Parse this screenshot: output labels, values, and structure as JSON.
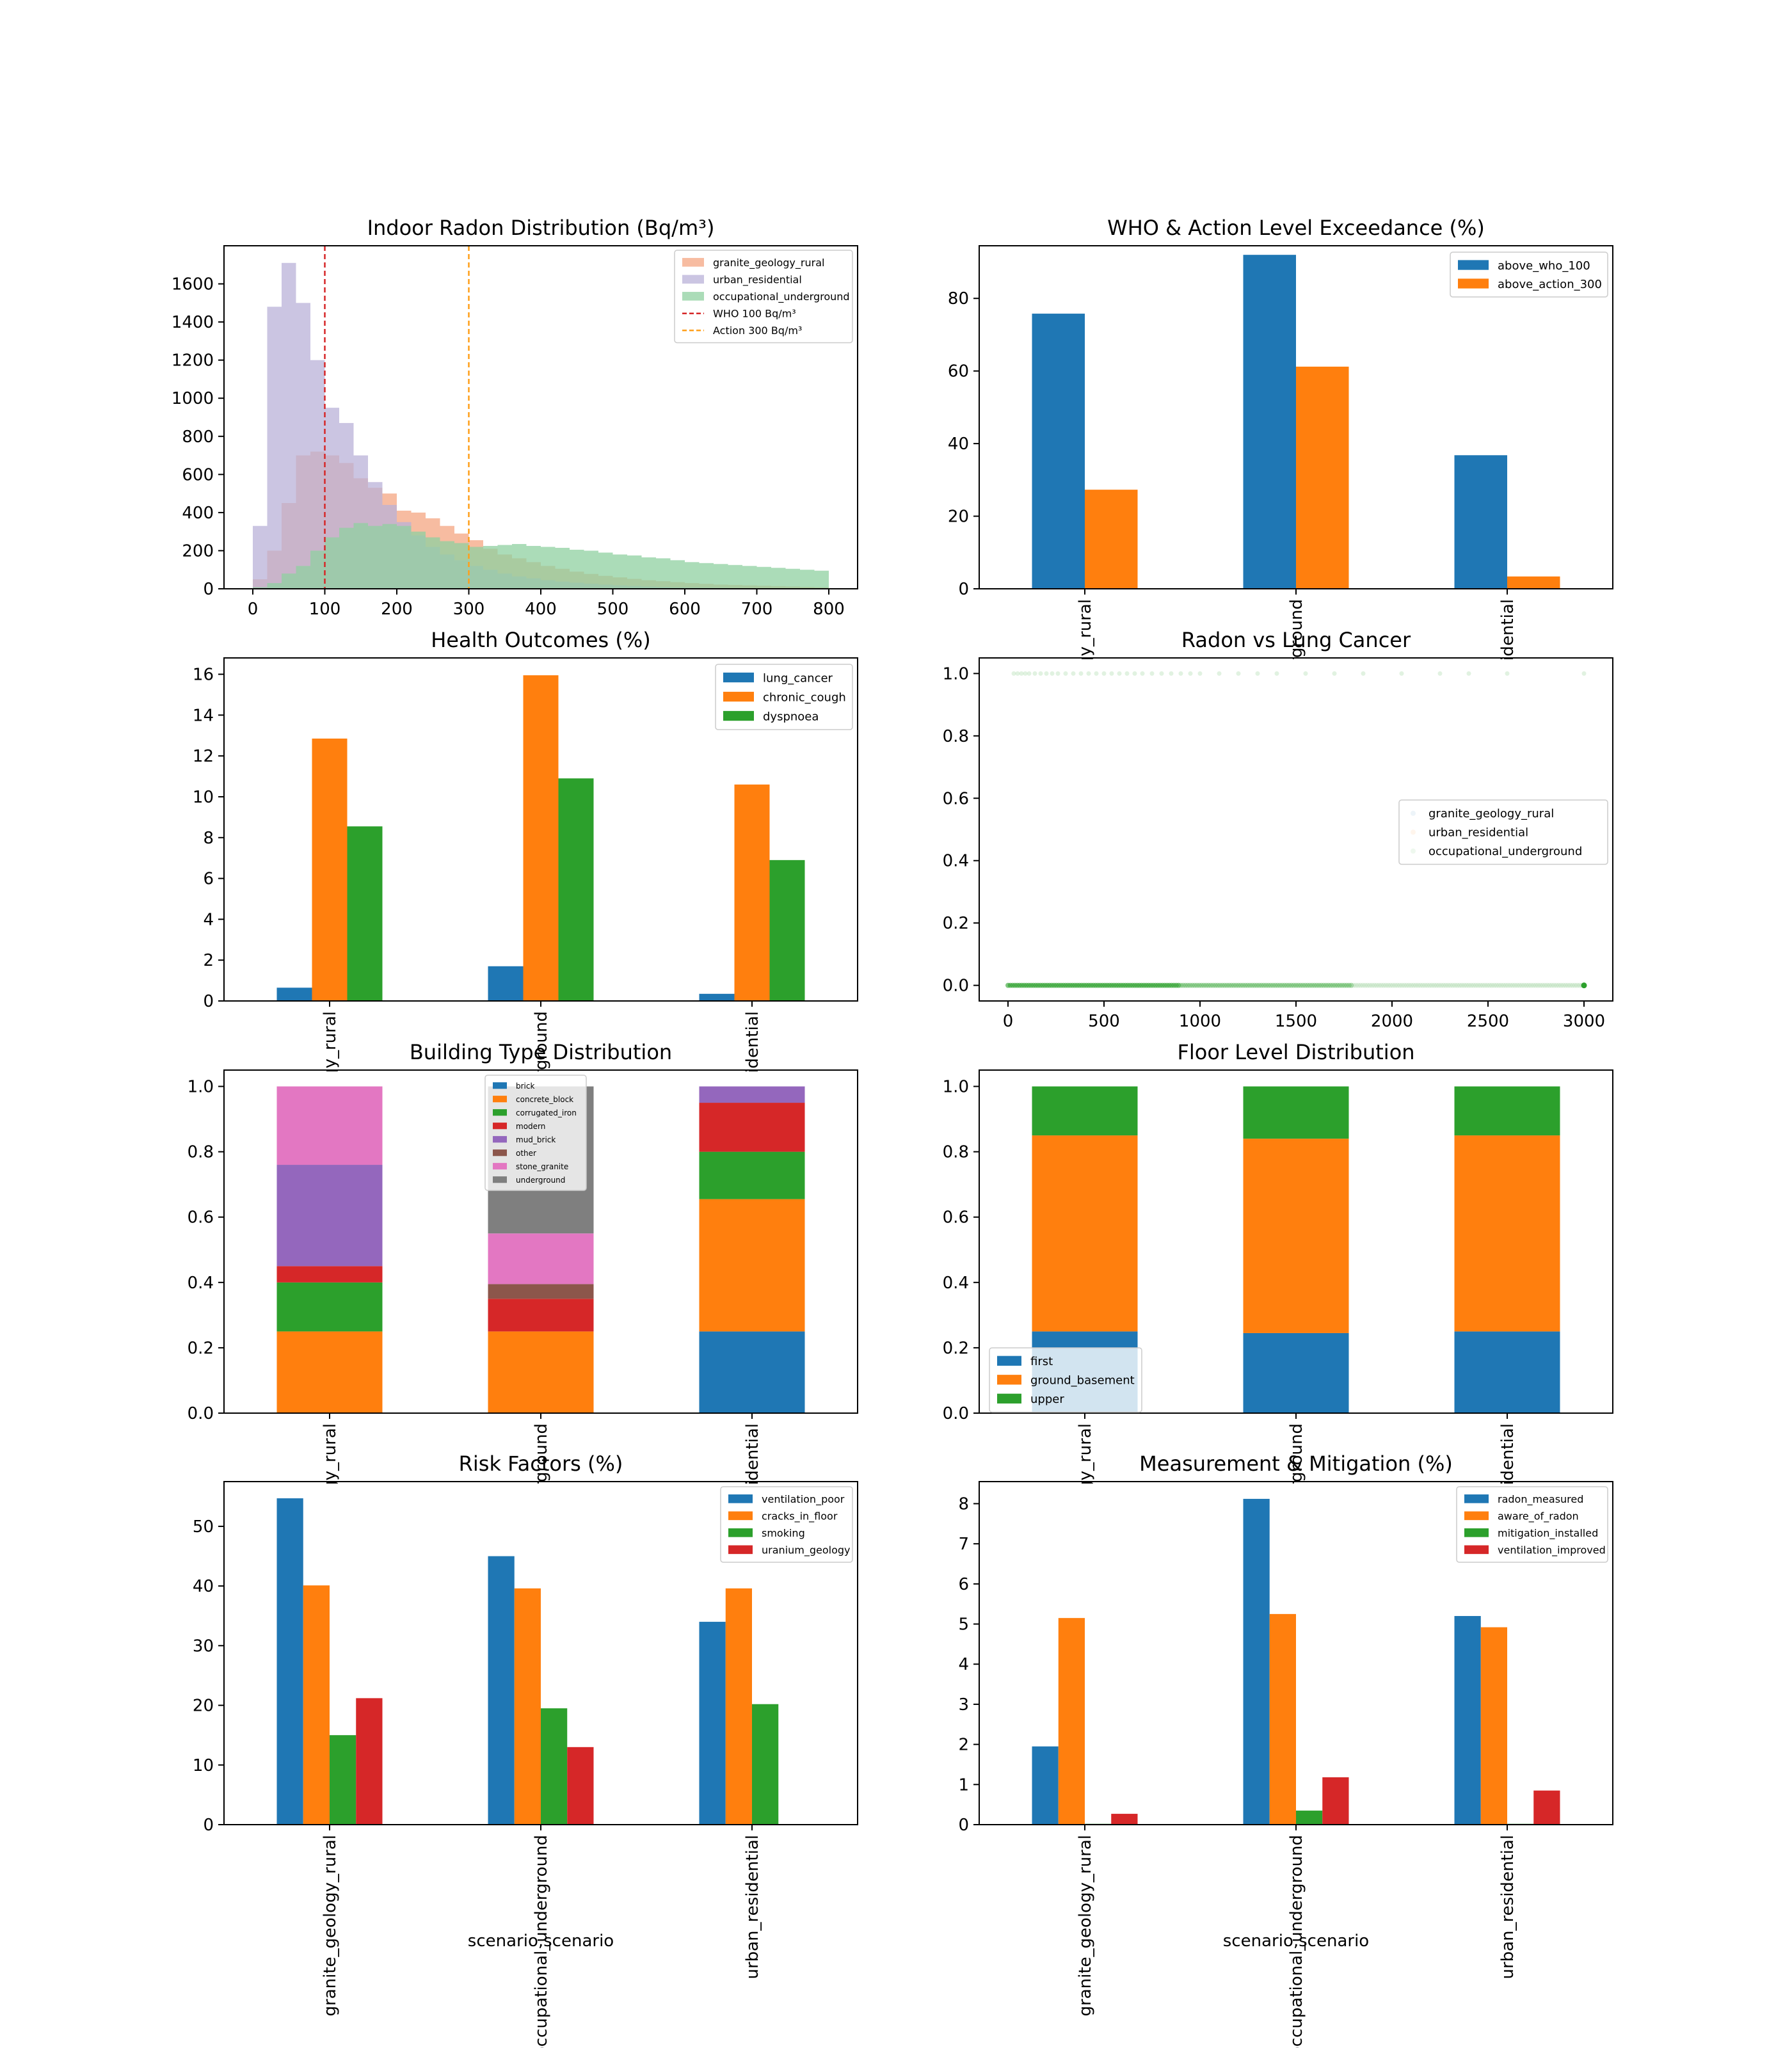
{
  "colors": {
    "blue": "#1f77b4",
    "orange": "#ff7f0e",
    "green": "#2ca02c",
    "red": "#d62728",
    "purple": "#9467bd",
    "brown": "#8c564b",
    "pink": "#e377c2",
    "gray": "#7f7f7f",
    "hist_orange": "#f4a582",
    "hist_purple": "#b9b1d8",
    "hist_green": "#8fd0a0"
  },
  "chart_data": [
    {
      "id": "hist",
      "type": "histogram",
      "title": "Indoor Radon Distribution (Bq/m³)",
      "xlim": [
        -40,
        840
      ],
      "ylim": [
        0,
        1800
      ],
      "xticks": [
        0,
        100,
        200,
        300,
        400,
        500,
        600,
        700,
        800
      ],
      "yticks": [
        0,
        200,
        400,
        600,
        800,
        1000,
        1200,
        1400,
        1600
      ],
      "bin_edges": [
        0,
        20,
        40,
        60,
        80,
        100,
        120,
        140,
        160,
        180,
        200,
        220,
        240,
        260,
        280,
        300,
        320,
        340,
        360,
        380,
        400,
        420,
        440,
        460,
        480,
        500,
        520,
        540,
        560,
        580,
        600,
        620,
        640,
        660,
        680,
        700,
        720,
        740,
        760,
        780,
        800
      ],
      "series": [
        {
          "name": "granite_geology_rural",
          "color": "#f4a582",
          "values": [
            50,
            200,
            450,
            700,
            720,
            700,
            660,
            580,
            530,
            500,
            410,
            400,
            370,
            330,
            290,
            255,
            210,
            180,
            160,
            140,
            120,
            105,
            90,
            78,
            68,
            60,
            52,
            45,
            40,
            35,
            30,
            26,
            22,
            20,
            18,
            16,
            14,
            12,
            10,
            8
          ]
        },
        {
          "name": "urban_residential",
          "color": "#b9b1d8",
          "values": [
            330,
            1480,
            1710,
            1500,
            1200,
            950,
            870,
            700,
            560,
            440,
            350,
            280,
            220,
            180,
            150,
            120,
            100,
            80,
            65,
            55,
            45,
            38,
            32,
            27,
            22,
            18,
            15,
            12,
            10,
            8,
            7,
            6,
            5,
            4,
            3,
            3,
            2,
            2,
            1,
            1
          ]
        },
        {
          "name": "occupational_underground",
          "color": "#8fd0a0",
          "values": [
            8,
            30,
            80,
            120,
            200,
            270,
            320,
            345,
            330,
            340,
            330,
            300,
            270,
            250,
            240,
            220,
            225,
            230,
            235,
            225,
            220,
            215,
            205,
            200,
            190,
            180,
            175,
            165,
            160,
            150,
            140,
            135,
            130,
            125,
            120,
            115,
            110,
            105,
            100,
            95
          ]
        }
      ],
      "vlines": [
        {
          "name": "WHO 100 Bq/m³",
          "x": 100,
          "color": "#d62728"
        },
        {
          "name": "Action 300 Bq/m³",
          "x": 300,
          "color": "#ff9f1a"
        }
      ],
      "legend": "top-right"
    },
    {
      "id": "who",
      "type": "bar",
      "title": "WHO & Action Level Exceedance (%)",
      "categories": [
        "granite_geology_rural",
        "occupational_underground",
        "urban_residential"
      ],
      "ylim": [
        0,
        94.5
      ],
      "yticks": [
        0,
        20,
        40,
        60,
        80
      ],
      "series": [
        {
          "name": "above_who_100",
          "values": [
            75.8,
            92.0,
            36.8
          ]
        },
        {
          "name": "above_action_300",
          "values": [
            27.3,
            61.2,
            3.4
          ]
        }
      ],
      "legend": "top-right"
    },
    {
      "id": "health",
      "type": "bar",
      "title": "Health Outcomes (%)",
      "categories": [
        "granite_geology_rural",
        "occupational_underground",
        "urban_residential"
      ],
      "ylim": [
        0,
        16.8
      ],
      "yticks": [
        0,
        2,
        4,
        6,
        8,
        10,
        12,
        14,
        16
      ],
      "series": [
        {
          "name": "lung_cancer",
          "values": [
            0.65,
            1.7,
            0.35
          ]
        },
        {
          "name": "chronic_cough",
          "values": [
            12.85,
            15.95,
            10.6
          ]
        },
        {
          "name": "dyspnoea",
          "values": [
            8.55,
            10.9,
            6.9
          ]
        }
      ],
      "legend": "top-right"
    },
    {
      "id": "scatter",
      "type": "scatter",
      "title": "Radon vs Lung Cancer",
      "xlim": [
        -150,
        3150
      ],
      "ylim": [
        -0.05,
        1.05
      ],
      "xticks": [
        0,
        500,
        1000,
        1500,
        2000,
        2500,
        3000
      ],
      "yticks": [
        0.0,
        0.2,
        0.4,
        0.6,
        0.8,
        1.0
      ],
      "series": [
        {
          "name": "granite_geology_rural",
          "color": "#1f77b4"
        },
        {
          "name": "urban_residential",
          "color": "#ff7f0e"
        },
        {
          "name": "occupational_underground",
          "color": "#2ca02c"
        }
      ],
      "points_y1": [
        30,
        50,
        70,
        90,
        110,
        140,
        170,
        200,
        230,
        260,
        300,
        340,
        380,
        420,
        460,
        500,
        540,
        580,
        620,
        660,
        700,
        750,
        800,
        850,
        900,
        950,
        1000,
        1100,
        1200,
        1300,
        1400,
        1550,
        1700,
        1850,
        2050,
        2250,
        2400,
        2600,
        3000
      ],
      "points_y0_range": [
        0,
        3000
      ],
      "legend": "center-right"
    },
    {
      "id": "building",
      "type": "stacked-bar",
      "title": "Building Type Distribution",
      "categories": [
        "granite_geology_rural",
        "occupational_underground",
        "urban_residential"
      ],
      "ylim": [
        0,
        1.05
      ],
      "yticks": [
        0.0,
        0.2,
        0.4,
        0.6,
        0.8,
        1.0
      ],
      "series": [
        {
          "name": "brick",
          "values": [
            0,
            0,
            0.25
          ]
        },
        {
          "name": "concrete_block",
          "values": [
            0.25,
            0.25,
            0.405
          ]
        },
        {
          "name": "corrugated_iron",
          "values": [
            0.15,
            0,
            0.145
          ]
        },
        {
          "name": "modern",
          "values": [
            0.05,
            0.1,
            0.15
          ]
        },
        {
          "name": "mud_brick",
          "values": [
            0.31,
            0,
            0.05
          ]
        },
        {
          "name": "other",
          "values": [
            0,
            0.045,
            0
          ]
        },
        {
          "name": "stone_granite",
          "values": [
            0.24,
            0.155,
            0
          ]
        },
        {
          "name": "underground",
          "values": [
            0,
            0.45,
            0
          ]
        }
      ],
      "legend": "top-center"
    },
    {
      "id": "floor",
      "type": "stacked-bar",
      "title": "Floor Level Distribution",
      "categories": [
        "granite_geology_rural",
        "occupational_underground",
        "urban_residential"
      ],
      "ylim": [
        0,
        1.05
      ],
      "yticks": [
        0.0,
        0.2,
        0.4,
        0.6,
        0.8,
        1.0
      ],
      "series": [
        {
          "name": "first",
          "values": [
            0.25,
            0.245,
            0.25
          ]
        },
        {
          "name": "ground_basement",
          "values": [
            0.6,
            0.595,
            0.6
          ]
        },
        {
          "name": "upper",
          "values": [
            0.15,
            0.16,
            0.15
          ]
        }
      ],
      "legend": "bottom-left"
    },
    {
      "id": "risk",
      "type": "bar",
      "title": "Risk Factors (%)",
      "categories": [
        "granite_geology_rural",
        "occupational_underground",
        "urban_residential"
      ],
      "ylim": [
        0,
        57.5
      ],
      "yticks": [
        0,
        10,
        20,
        30,
        40,
        50
      ],
      "series": [
        {
          "name": "ventilation_poor",
          "values": [
            54.7,
            45.0,
            34.0
          ]
        },
        {
          "name": "cracks_in_floor",
          "values": [
            40.1,
            39.6,
            39.6
          ]
        },
        {
          "name": "smoking",
          "values": [
            15.0,
            19.5,
            20.2
          ]
        },
        {
          "name": "uranium_geology",
          "values": [
            21.2,
            13.0,
            0
          ]
        }
      ],
      "xlabel": "scenario,scenario",
      "legend": "top-right"
    },
    {
      "id": "mitig",
      "type": "bar",
      "title": "Measurement & Mitigation (%)",
      "categories": [
        "granite_geology_rural",
        "occupational_underground",
        "urban_residential"
      ],
      "ylim": [
        0,
        8.55
      ],
      "yticks": [
        0,
        1,
        2,
        3,
        4,
        5,
        6,
        7,
        8
      ],
      "series": [
        {
          "name": "radon_measured",
          "values": [
            1.95,
            8.12,
            5.2
          ]
        },
        {
          "name": "aware_of_radon",
          "values": [
            5.15,
            5.25,
            4.92
          ]
        },
        {
          "name": "mitigation_installed",
          "values": [
            0.02,
            0.35,
            0.02
          ]
        },
        {
          "name": "ventilation_improved",
          "values": [
            0.27,
            1.18,
            0.85
          ]
        }
      ],
      "xlabel": "scenario,scenario",
      "legend": "top-right"
    }
  ]
}
